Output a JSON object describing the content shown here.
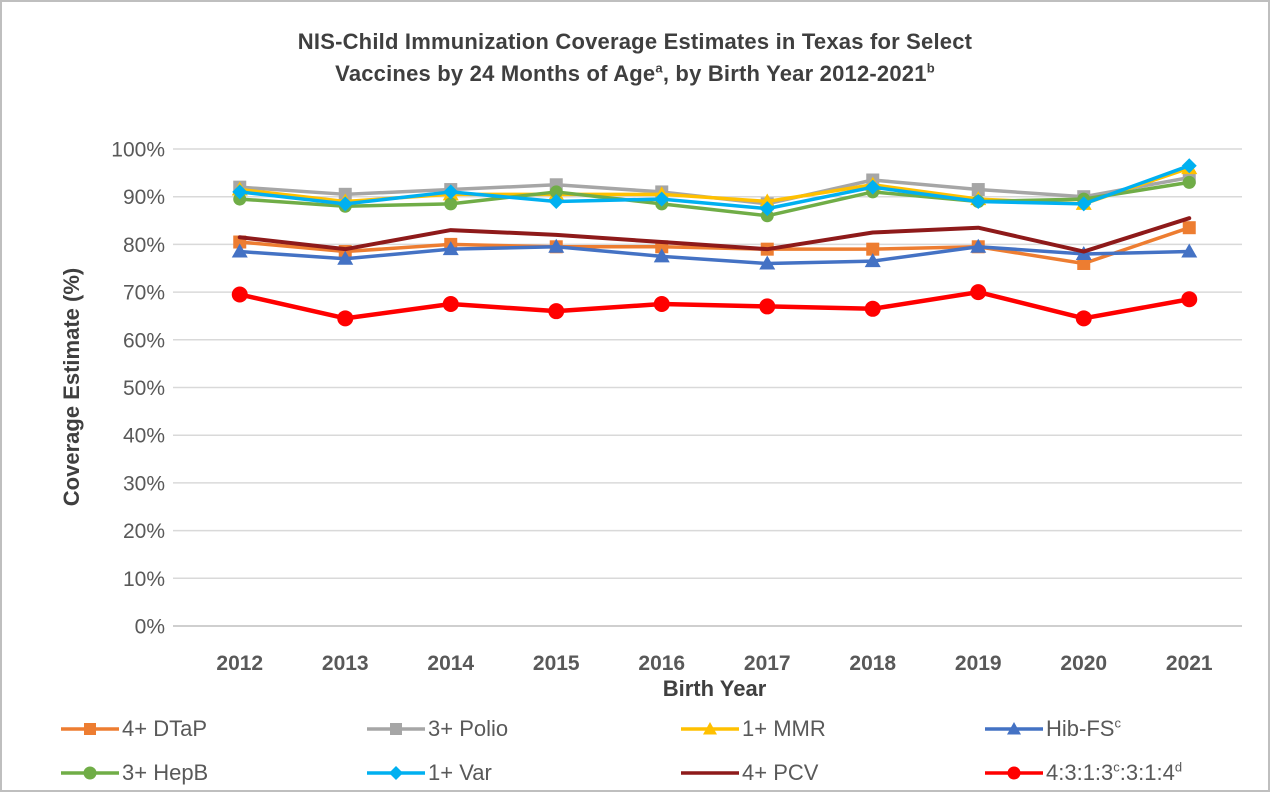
{
  "page": {
    "background": "#ffffff",
    "border_color": "#bfbfbf"
  },
  "title": {
    "line1": "NIS-Child Immunization Coverage Estimates in Texas for Select",
    "line2_part1": "Vaccines by 24 Months of Age",
    "line2_sup1": "a",
    "line2_part2": ", by Birth Year 2012-2021",
    "line2_sup2": "b"
  },
  "chart_data": {
    "type": "line",
    "x_label": "Birth Year",
    "y_label": "Coverage Estimate (%)",
    "categories": [
      "2012",
      "2013",
      "2014",
      "2015",
      "2016",
      "2017",
      "2018",
      "2019",
      "2020",
      "2021"
    ],
    "y_ticks": [
      "100%",
      "90%",
      "80%",
      "70%",
      "60%",
      "50%",
      "40%",
      "30%",
      "20%",
      "10%",
      "0%"
    ],
    "ylim": [
      0,
      100
    ],
    "grid": "horizontal",
    "legend_position": "bottom",
    "text_colors": {
      "axis_text": "#595959",
      "title_text": "#3f3f3f"
    },
    "grid_colors": {
      "gridline": "#d9d9d9",
      "baseline": "#bfbfbf"
    },
    "series": [
      {
        "name": "4+ DTaP",
        "color": "#ED7D31",
        "marker": "square",
        "values": [
          80.5,
          78.5,
          80.0,
          79.5,
          79.5,
          79.0,
          79.0,
          79.5,
          76.0,
          83.5
        ]
      },
      {
        "name": "3+ Polio",
        "color": "#A6A6A6",
        "marker": "square",
        "values": [
          92.0,
          90.5,
          91.5,
          92.5,
          91.0,
          88.5,
          93.5,
          91.5,
          90.0,
          94.0
        ]
      },
      {
        "name": "1+ MMR",
        "color": "#FFC000",
        "marker": "triangle",
        "values": [
          91.5,
          89.0,
          90.5,
          90.5,
          90.5,
          89.0,
          92.5,
          89.5,
          88.5,
          96.0
        ]
      },
      {
        "name": "Hib-FS",
        "name_sup": "c",
        "color": "#4472C4",
        "marker": "triangle",
        "values": [
          78.5,
          77.0,
          79.0,
          79.5,
          77.5,
          76.0,
          76.5,
          79.5,
          78.0,
          78.5
        ]
      },
      {
        "name": "3+ HepB",
        "color": "#70AD47",
        "marker": "circle",
        "values": [
          89.5,
          88.0,
          88.5,
          91.0,
          88.5,
          86.0,
          91.0,
          89.0,
          89.5,
          93.0
        ]
      },
      {
        "name": "1+ Var",
        "color": "#00B0F0",
        "marker": "diamond",
        "values": [
          91.0,
          88.5,
          91.0,
          89.0,
          89.5,
          87.5,
          92.0,
          89.0,
          88.5,
          96.5
        ]
      },
      {
        "name": "4+ PCV",
        "color": "#8E1A1A",
        "marker": "none",
        "values": [
          81.5,
          79.0,
          83.0,
          82.0,
          80.5,
          79.0,
          82.5,
          83.5,
          78.5,
          85.5
        ]
      },
      {
        "name": "4:3:1:3",
        "name_sup": "c",
        "name2": ":3:1:4",
        "name_sup2": "d",
        "color": "#FF0000",
        "marker": "circle",
        "values": [
          69.5,
          64.5,
          67.5,
          66.0,
          67.5,
          67.0,
          66.5,
          70.0,
          64.5,
          68.5
        ]
      }
    ]
  }
}
